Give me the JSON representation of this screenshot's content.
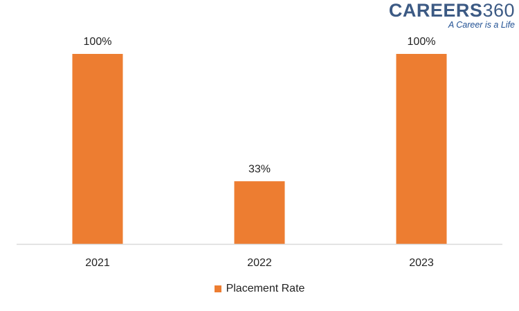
{
  "logo": {
    "brand_letters": "CAREERS",
    "brand_number": "360",
    "tagline": "A Career is a Life"
  },
  "chart_data": {
    "type": "bar",
    "categories": [
      "2021",
      "2022",
      "2023"
    ],
    "series": [
      {
        "name": "Placement Rate",
        "values": [
          100,
          33,
          100
        ]
      }
    ],
    "data_labels": [
      "100%",
      "33%",
      "100%"
    ],
    "ylim": [
      0,
      100
    ],
    "grid": false,
    "legend_position": "bottom",
    "title": "",
    "xlabel": "",
    "ylabel": "",
    "colors": {
      "bar": "#ED7D31",
      "axis": "#d9d9d9",
      "text": "#222222"
    }
  }
}
